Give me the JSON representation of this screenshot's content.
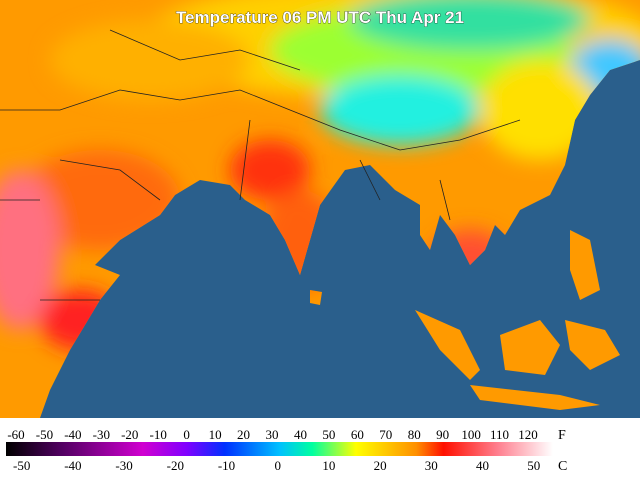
{
  "title": "Temperature 06 PM UTC Thu Apr 21",
  "legend": {
    "fahrenheit_unit": "F",
    "celsius_unit": "C",
    "fahrenheit_ticks": [
      -60,
      -50,
      -40,
      -30,
      -20,
      -10,
      0,
      10,
      20,
      30,
      40,
      50,
      60,
      70,
      80,
      90,
      100,
      110,
      120
    ],
    "celsius_ticks": [
      -50,
      -40,
      -30,
      -20,
      -10,
      0,
      10,
      20,
      30,
      40,
      50
    ]
  }
}
